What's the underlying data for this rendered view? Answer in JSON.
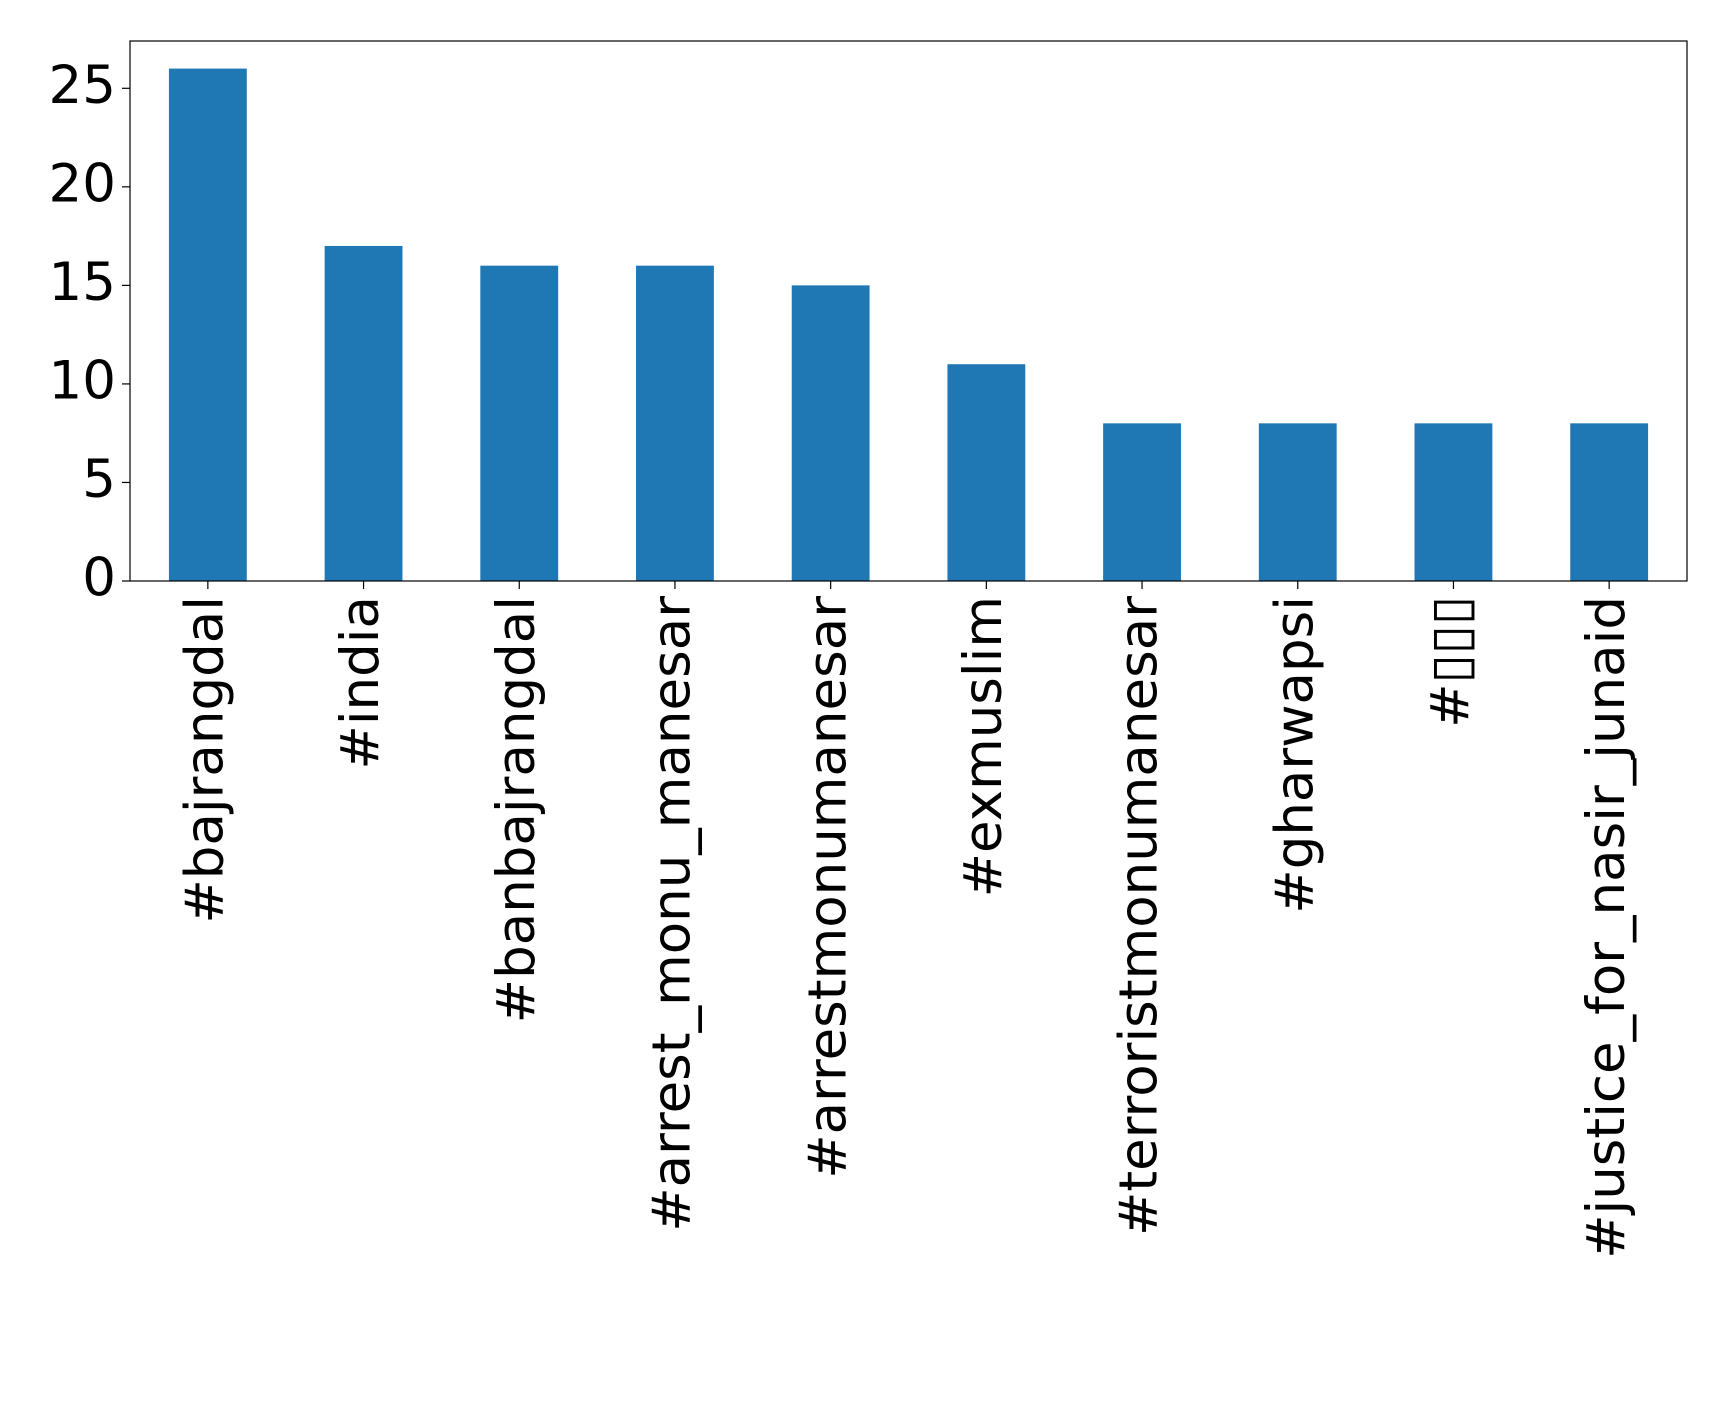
{
  "chart_data": {
    "type": "bar",
    "categories": [
      "#bajrangdal",
      "#india",
      "#banbajrangdal",
      "#arrest_monu_manesar",
      "#arrestmonumanesar",
      "#exmuslim",
      "#terroristmonumanesar",
      "#gharwapsi",
      "#▯▯▯",
      "#justice_for_nasir_junaid"
    ],
    "values": [
      26,
      17,
      16,
      16,
      15,
      11,
      8,
      8,
      8,
      8
    ],
    "color": "#1f77b4",
    "ylim": [
      0,
      27.4
    ],
    "yticks": [
      0,
      5,
      10,
      15,
      20,
      25
    ],
    "grid": false
  }
}
